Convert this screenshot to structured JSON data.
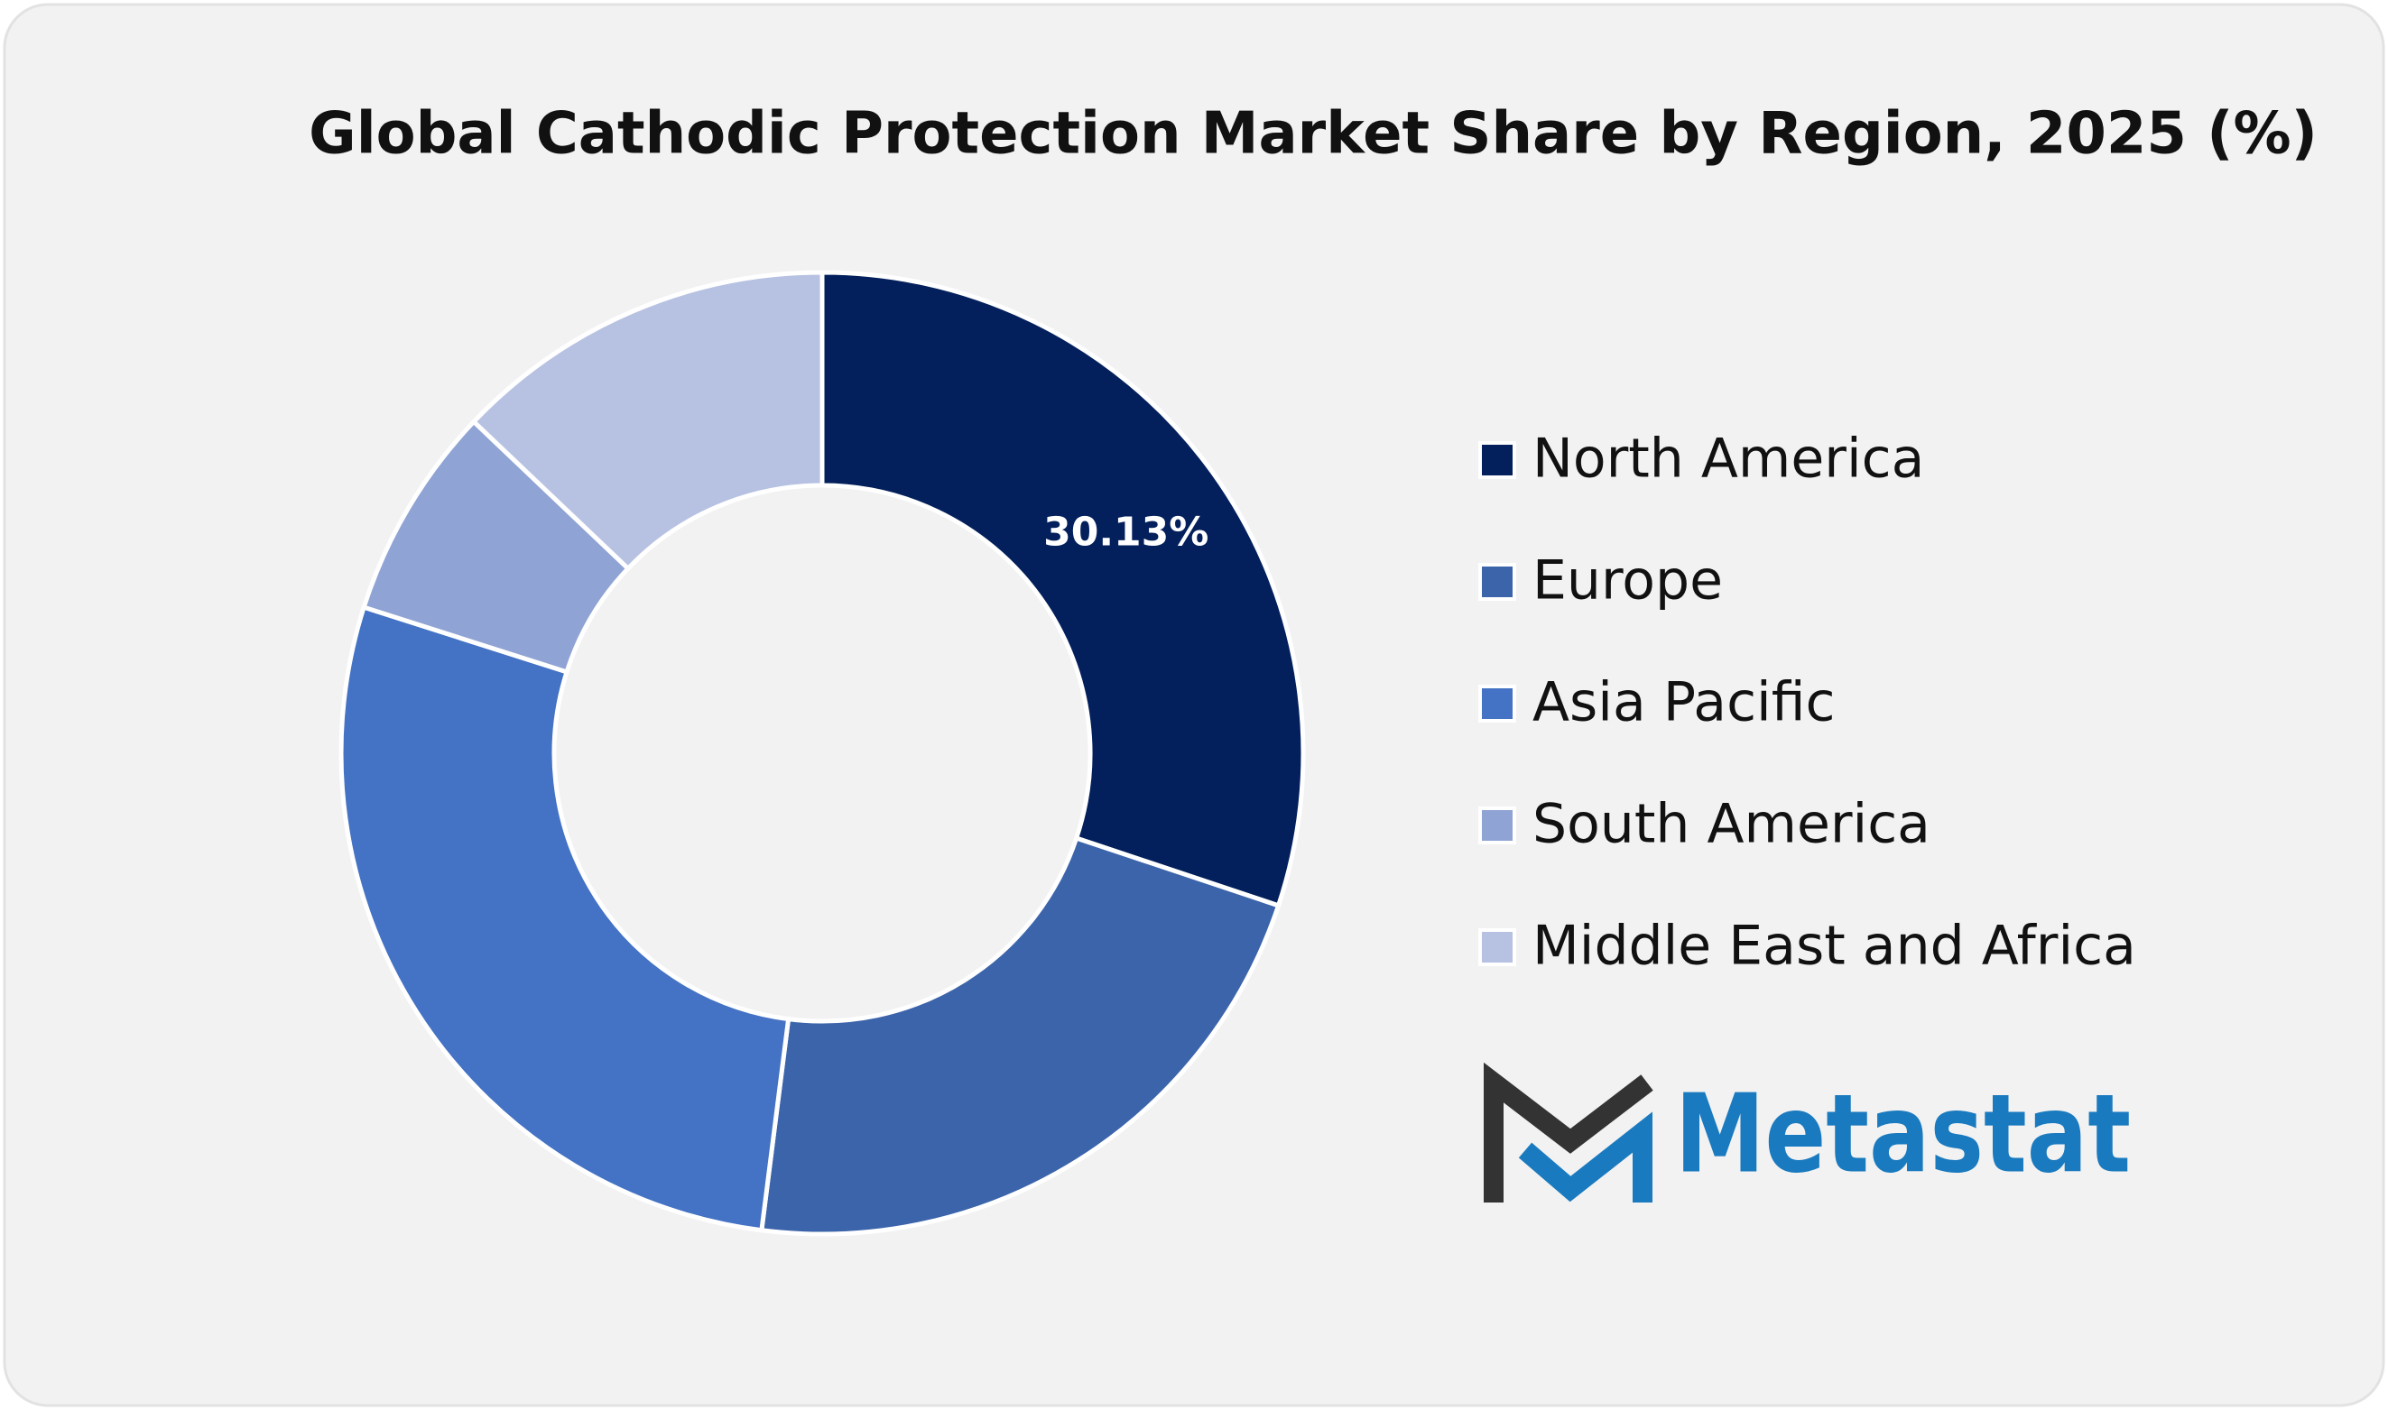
{
  "chart_data": {
    "type": "donut",
    "title": "Global Cathodic Protection Market Share by Region, 2025 (%)",
    "categories": [
      "North America",
      "Europe",
      "Asia Pacific",
      "South America",
      "Middle East and Africa"
    ],
    "values": [
      30.13,
      21.88,
      27.9,
      7.2,
      12.89
    ],
    "value_labels": [
      "30.13%",
      null,
      null,
      null,
      null
    ],
    "colors": [
      "#03205c",
      "#3c64ab",
      "#4472c4",
      "#8fa3d4",
      "#b7c2e2"
    ],
    "legend": "right"
  },
  "logo": {
    "text": "Metastat"
  }
}
